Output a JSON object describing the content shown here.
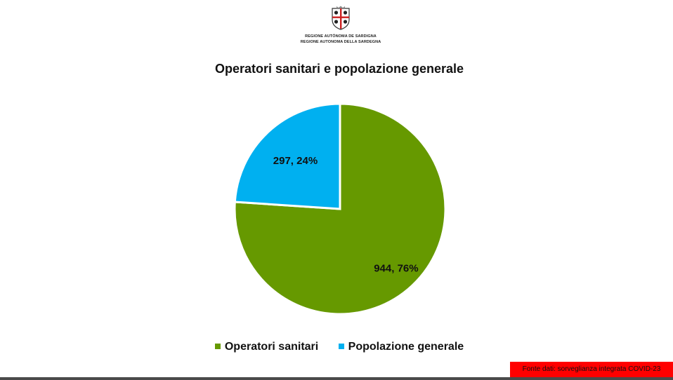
{
  "logo": {
    "line1": "REGIONE AUTÒNOMA DE SARDIGNA",
    "line2": "REGIONE AUTONOMA DELLA SARDEGNA"
  },
  "source_note": "Fonte dati: sorveglianza integrata COVID-23",
  "colors": {
    "operatori": "#669900",
    "popolazione": "#00b0f0",
    "source_bg": "#ff0000"
  },
  "chart_data": {
    "type": "pie",
    "title": "Operatori sanitari e popolazione generale",
    "categories": [
      "Operatori sanitari",
      "Popolazione generale"
    ],
    "values": [
      944,
      297
    ],
    "percentages": [
      76,
      24
    ],
    "data_labels": [
      "944, 76%",
      "297, 24%"
    ],
    "colors": [
      "#669900",
      "#00b0f0"
    ],
    "legend_position": "bottom"
  }
}
